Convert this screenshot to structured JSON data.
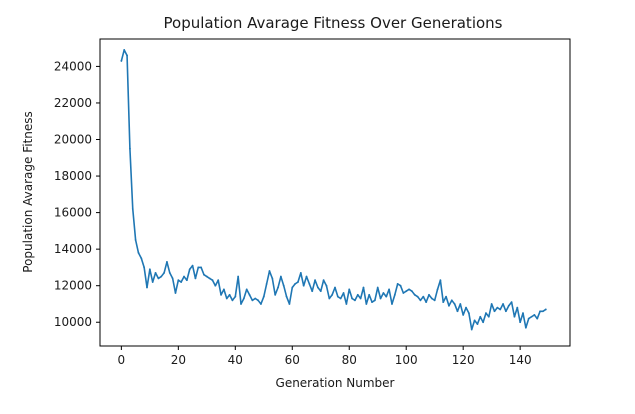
{
  "chart_data": {
    "type": "line",
    "title": "Population Avarage Fitness Over Generations",
    "xlabel": "Generation Number",
    "ylabel": "Population Avarage Fitness",
    "xlim": [
      -7.5,
      157.5
    ],
    "ylim": [
      8700,
      25500
    ],
    "xticks": [
      0,
      20,
      40,
      60,
      80,
      100,
      120,
      140
    ],
    "yticks": [
      10000,
      12000,
      14000,
      16000,
      18000,
      20000,
      22000,
      24000
    ],
    "grid": false,
    "series": [
      {
        "name": "Population Avarage Fitness",
        "color": "#1f77b4",
        "x": [
          0,
          1,
          2,
          3,
          4,
          5,
          6,
          7,
          8,
          9,
          10,
          11,
          12,
          13,
          14,
          15,
          16,
          17,
          18,
          19,
          20,
          21,
          22,
          23,
          24,
          25,
          26,
          27,
          28,
          29,
          30,
          31,
          32,
          33,
          34,
          35,
          36,
          37,
          38,
          39,
          40,
          41,
          42,
          43,
          44,
          45,
          46,
          47,
          48,
          49,
          50,
          51,
          52,
          53,
          54,
          55,
          56,
          57,
          58,
          59,
          60,
          61,
          62,
          63,
          64,
          65,
          66,
          67,
          68,
          69,
          70,
          71,
          72,
          73,
          74,
          75,
          76,
          77,
          78,
          79,
          80,
          81,
          82,
          83,
          84,
          85,
          86,
          87,
          88,
          89,
          90,
          91,
          92,
          93,
          94,
          95,
          96,
          97,
          98,
          99,
          100,
          101,
          102,
          103,
          104,
          105,
          106,
          107,
          108,
          109,
          110,
          111,
          112,
          113,
          114,
          115,
          116,
          117,
          118,
          119,
          120,
          121,
          122,
          123,
          124,
          125,
          126,
          127,
          128,
          129,
          130,
          131,
          132,
          133,
          134,
          135,
          136,
          137,
          138,
          139,
          140,
          141,
          142,
          143,
          144,
          145,
          146,
          147,
          148,
          149
        ],
        "y": [
          24300,
          24900,
          24600,
          19500,
          16200,
          14500,
          13800,
          13500,
          13000,
          11900,
          12900,
          12200,
          12700,
          12400,
          12500,
          12700,
          13300,
          12700,
          12400,
          11600,
          12300,
          12200,
          12500,
          12300,
          12900,
          13100,
          12400,
          13000,
          13000,
          12600,
          12500,
          12400,
          12300,
          12000,
          12300,
          11500,
          11800,
          11300,
          11500,
          11200,
          11400,
          12500,
          11000,
          11300,
          11800,
          11500,
          11200,
          11300,
          11200,
          11000,
          11400,
          12100,
          12800,
          12400,
          11500,
          11900,
          12500,
          12000,
          11400,
          11000,
          11900,
          12100,
          12200,
          12700,
          12000,
          12500,
          12100,
          11700,
          12300,
          11900,
          11700,
          12300,
          12000,
          11300,
          11500,
          11900,
          11400,
          11300,
          11600,
          11000,
          11800,
          11300,
          11200,
          11500,
          11300,
          11900,
          11000,
          11500,
          11100,
          11200,
          11900,
          11300,
          11600,
          11400,
          11800,
          11000,
          11500,
          12100,
          12000,
          11600,
          11700,
          11800,
          11700,
          11500,
          11400,
          11200,
          11400,
          11100,
          11500,
          11300,
          11200,
          11800,
          12300,
          11100,
          11400,
          10900,
          11200,
          11000,
          10600,
          11000,
          10400,
          10800,
          10500,
          9600,
          10100,
          9900,
          10300,
          10000,
          10500,
          10300,
          11000,
          10600,
          10800,
          10700,
          11000,
          10600,
          10900,
          11100,
          10300,
          10800,
          10000,
          10500,
          9700,
          10200,
          10300,
          10400,
          10200,
          10600,
          10600,
          10700
        ]
      }
    ]
  }
}
